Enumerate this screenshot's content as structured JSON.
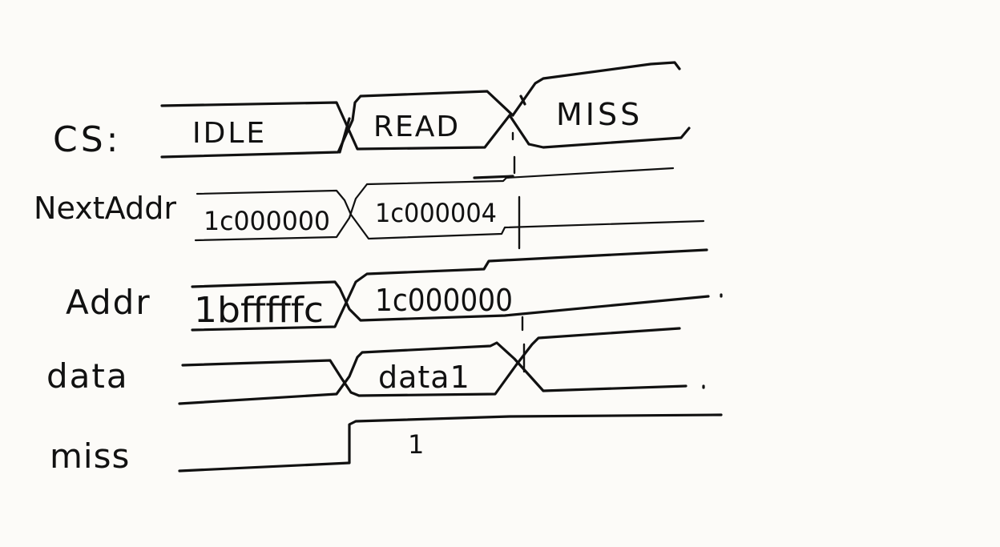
{
  "diagram": {
    "type": "timing-diagram",
    "signals": [
      {
        "id": "cs",
        "label": "CS:",
        "segments": [
          "IDLE",
          "READ",
          "MISS"
        ]
      },
      {
        "id": "next_addr",
        "label": "NextAddr",
        "segments": [
          "1c000000",
          "1c000004",
          ""
        ]
      },
      {
        "id": "addr",
        "label": "Addr",
        "segments": [
          "1bfffffc",
          "1c000000",
          ""
        ]
      },
      {
        "id": "data",
        "label": "data",
        "segments": [
          "",
          "data1",
          ""
        ]
      },
      {
        "id": "miss",
        "label": "miss",
        "segments": [
          "",
          "1"
        ]
      }
    ]
  }
}
